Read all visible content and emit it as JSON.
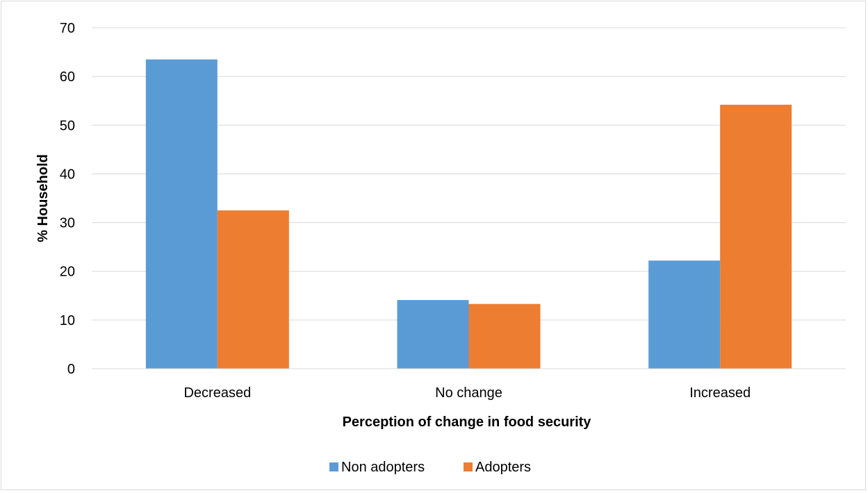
{
  "chart_data": {
    "type": "bar",
    "title": "",
    "xlabel": "Perception of change in food security",
    "ylabel": "% Household",
    "categories": [
      "Decreased",
      "No change",
      "Increased"
    ],
    "series": [
      {
        "name": "Non adopters",
        "color": "#5b9bd5",
        "values": [
          63.5,
          14.1,
          22.2
        ]
      },
      {
        "name": "Adopters",
        "color": "#ed7d31",
        "values": [
          32.5,
          13.3,
          54.2
        ]
      }
    ],
    "ylim": [
      0,
      70
    ],
    "yticks": [
      "0",
      "10",
      "20",
      "30",
      "40",
      "50",
      "60",
      "70"
    ],
    "grid": true,
    "legend_position": "bottom"
  }
}
